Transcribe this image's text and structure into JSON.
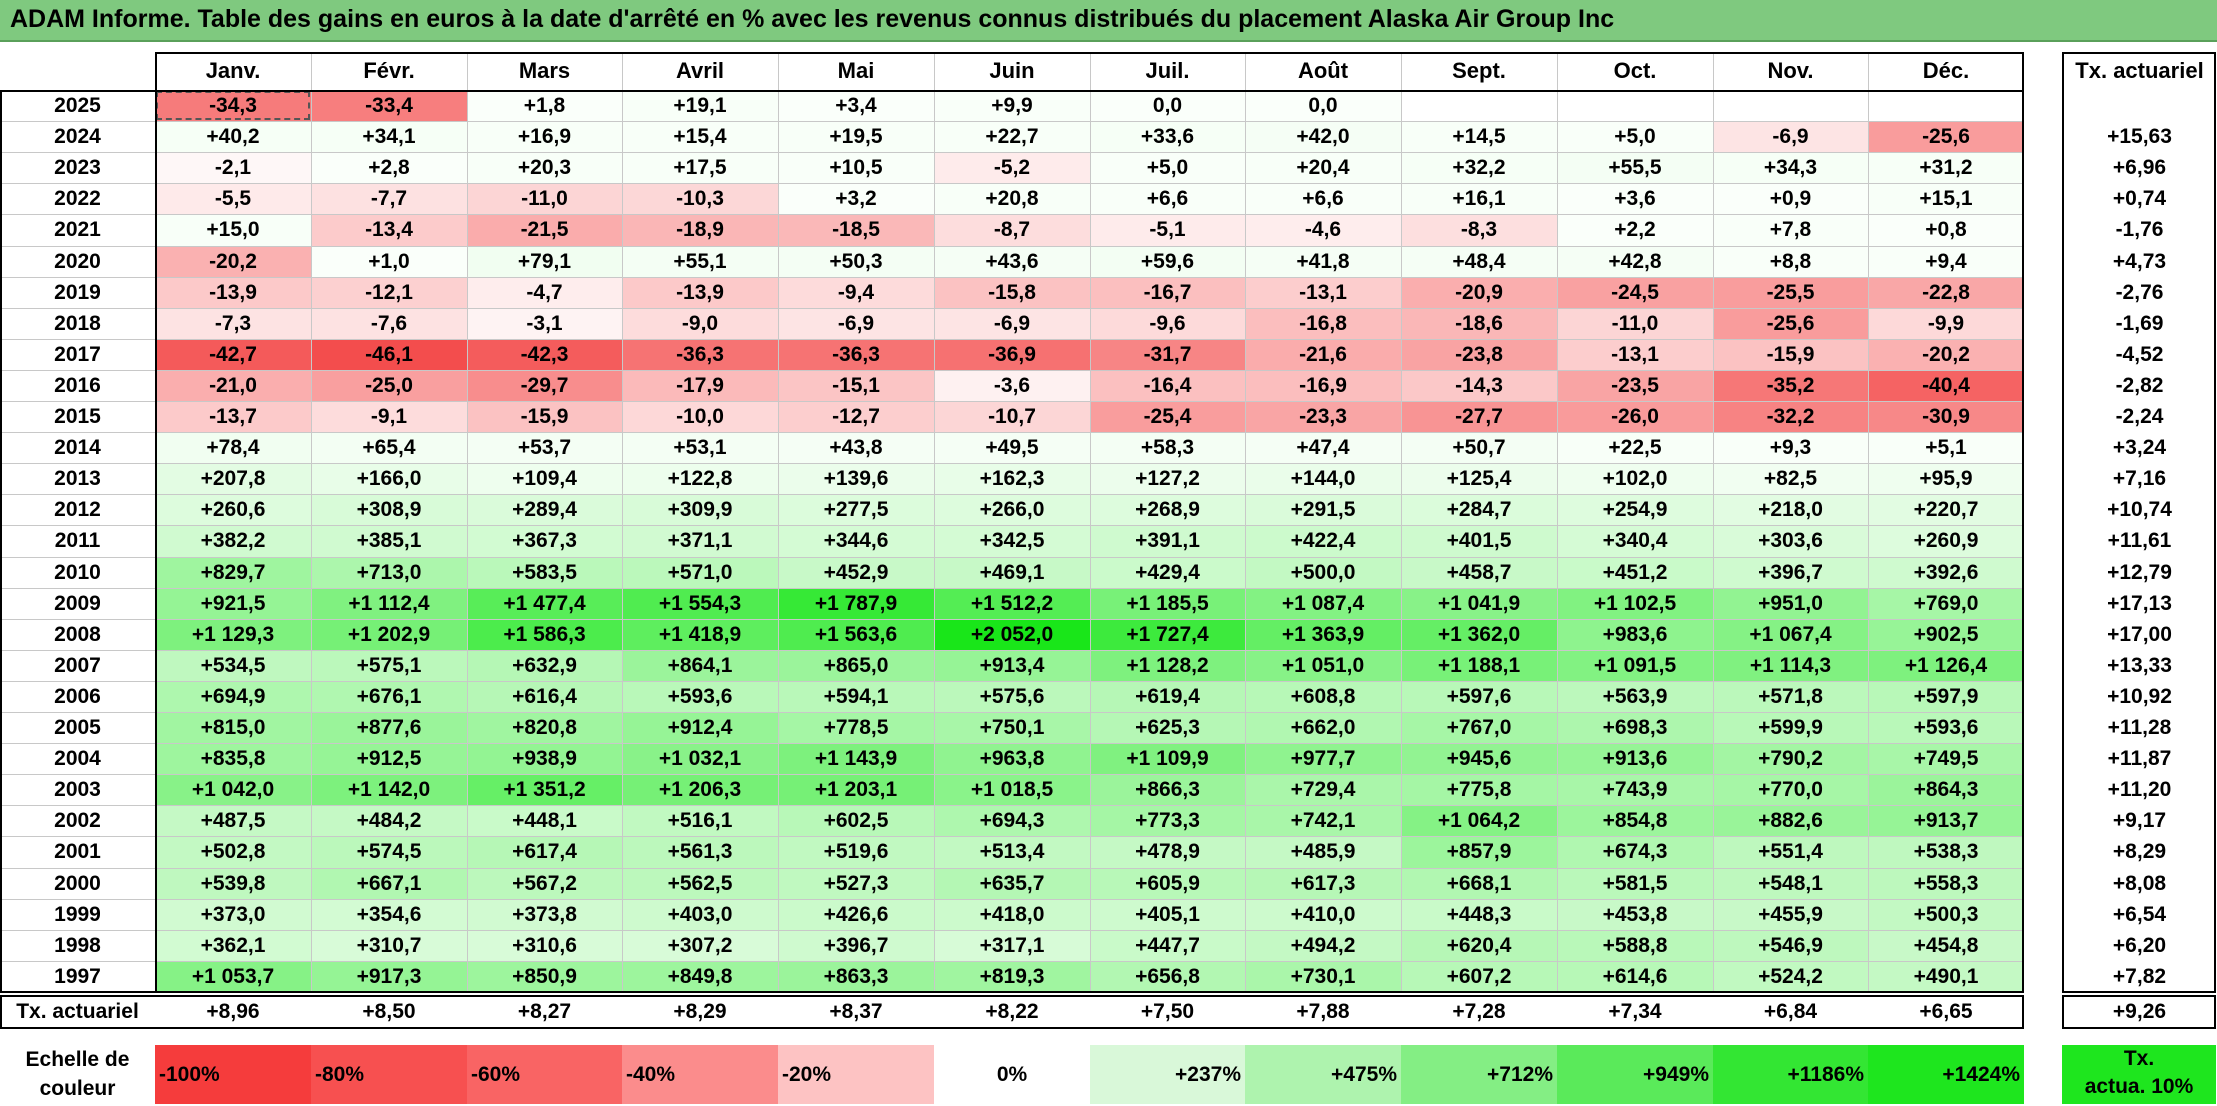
{
  "title": "ADAM Informe. Table des gains en euros à la date d'arrêté en % avec les revenus connus distribués du placement Alaska Air Group Inc",
  "months": [
    "Janv.",
    "Févr.",
    "Mars",
    "Avril",
    "Mai",
    "Juin",
    "Juil.",
    "Août",
    "Sept.",
    "Oct.",
    "Nov.",
    "Déc."
  ],
  "rate_header": "Tx. actuariel",
  "rows": [
    {
      "year": "2025",
      "values": [
        "-34,3",
        "-33,4",
        "+1,8",
        "+19,1",
        "+3,4",
        "+9,9",
        "0,0",
        "0,0",
        "",
        "",
        "",
        ""
      ],
      "rate": ""
    },
    {
      "year": "2024",
      "values": [
        "+40,2",
        "+34,1",
        "+16,9",
        "+15,4",
        "+19,5",
        "+22,7",
        "+33,6",
        "+42,0",
        "+14,5",
        "+5,0",
        "-6,9",
        "-25,6"
      ],
      "rate": "+15,63"
    },
    {
      "year": "2023",
      "values": [
        "-2,1",
        "+2,8",
        "+20,3",
        "+17,5",
        "+10,5",
        "-5,2",
        "+5,0",
        "+20,4",
        "+32,2",
        "+55,5",
        "+34,3",
        "+31,2"
      ],
      "rate": "+6,96"
    },
    {
      "year": "2022",
      "values": [
        "-5,5",
        "-7,7",
        "-11,0",
        "-10,3",
        "+3,2",
        "+20,8",
        "+6,6",
        "+6,6",
        "+16,1",
        "+3,6",
        "+0,9",
        "+15,1"
      ],
      "rate": "+0,74"
    },
    {
      "year": "2021",
      "values": [
        "+15,0",
        "-13,4",
        "-21,5",
        "-18,9",
        "-18,5",
        "-8,7",
        "-5,1",
        "-4,6",
        "-8,3",
        "+2,2",
        "+7,8",
        "+0,8"
      ],
      "rate": "-1,76"
    },
    {
      "year": "2020",
      "values": [
        "-20,2",
        "+1,0",
        "+79,1",
        "+55,1",
        "+50,3",
        "+43,6",
        "+59,6",
        "+41,8",
        "+48,4",
        "+42,8",
        "+8,8",
        "+9,4"
      ],
      "rate": "+4,73"
    },
    {
      "year": "2019",
      "values": [
        "-13,9",
        "-12,1",
        "-4,7",
        "-13,9",
        "-9,4",
        "-15,8",
        "-16,7",
        "-13,1",
        "-20,9",
        "-24,5",
        "-25,5",
        "-22,8"
      ],
      "rate": "-2,76"
    },
    {
      "year": "2018",
      "values": [
        "-7,3",
        "-7,6",
        "-3,1",
        "-9,0",
        "-6,9",
        "-6,9",
        "-9,6",
        "-16,8",
        "-18,6",
        "-11,0",
        "-25,6",
        "-9,9"
      ],
      "rate": "-1,69"
    },
    {
      "year": "2017",
      "values": [
        "-42,7",
        "-46,1",
        "-42,3",
        "-36,3",
        "-36,3",
        "-36,9",
        "-31,7",
        "-21,6",
        "-23,8",
        "-13,1",
        "-15,9",
        "-20,2"
      ],
      "rate": "-4,52"
    },
    {
      "year": "2016",
      "values": [
        "-21,0",
        "-25,0",
        "-29,7",
        "-17,9",
        "-15,1",
        "-3,6",
        "-16,4",
        "-16,9",
        "-14,3",
        "-23,5",
        "-35,2",
        "-40,4"
      ],
      "rate": "-2,82"
    },
    {
      "year": "2015",
      "values": [
        "-13,7",
        "-9,1",
        "-15,9",
        "-10,0",
        "-12,7",
        "-10,7",
        "-25,4",
        "-23,3",
        "-27,7",
        "-26,0",
        "-32,2",
        "-30,9"
      ],
      "rate": "-2,24"
    },
    {
      "year": "2014",
      "values": [
        "+78,4",
        "+65,4",
        "+53,7",
        "+53,1",
        "+43,8",
        "+49,5",
        "+58,3",
        "+47,4",
        "+50,7",
        "+22,5",
        "+9,3",
        "+5,1"
      ],
      "rate": "+3,24"
    },
    {
      "year": "2013",
      "values": [
        "+207,8",
        "+166,0",
        "+109,4",
        "+122,8",
        "+139,6",
        "+162,3",
        "+127,2",
        "+144,0",
        "+125,4",
        "+102,0",
        "+82,5",
        "+95,9"
      ],
      "rate": "+7,16"
    },
    {
      "year": "2012",
      "values": [
        "+260,6",
        "+308,9",
        "+289,4",
        "+309,9",
        "+277,5",
        "+266,0",
        "+268,9",
        "+291,5",
        "+284,7",
        "+254,9",
        "+218,0",
        "+220,7"
      ],
      "rate": "+10,74"
    },
    {
      "year": "2011",
      "values": [
        "+382,2",
        "+385,1",
        "+367,3",
        "+371,1",
        "+344,6",
        "+342,5",
        "+391,1",
        "+422,4",
        "+401,5",
        "+340,4",
        "+303,6",
        "+260,9"
      ],
      "rate": "+11,61"
    },
    {
      "year": "2010",
      "values": [
        "+829,7",
        "+713,0",
        "+583,5",
        "+571,0",
        "+452,9",
        "+469,1",
        "+429,4",
        "+500,0",
        "+458,7",
        "+451,2",
        "+396,7",
        "+392,6"
      ],
      "rate": "+12,79"
    },
    {
      "year": "2009",
      "values": [
        "+921,5",
        "+1 112,4",
        "+1 477,4",
        "+1 554,3",
        "+1 787,9",
        "+1 512,2",
        "+1 185,5",
        "+1 087,4",
        "+1 041,9",
        "+1 102,5",
        "+951,0",
        "+769,0"
      ],
      "rate": "+17,13"
    },
    {
      "year": "2008",
      "values": [
        "+1 129,3",
        "+1 202,9",
        "+1 586,3",
        "+1 418,9",
        "+1 563,6",
        "+2 052,0",
        "+1 727,4",
        "+1 363,9",
        "+1 362,0",
        "+983,6",
        "+1 067,4",
        "+902,5"
      ],
      "rate": "+17,00"
    },
    {
      "year": "2007",
      "values": [
        "+534,5",
        "+575,1",
        "+632,9",
        "+864,1",
        "+865,0",
        "+913,4",
        "+1 128,2",
        "+1 051,0",
        "+1 188,1",
        "+1 091,5",
        "+1 114,3",
        "+1 126,4"
      ],
      "rate": "+13,33"
    },
    {
      "year": "2006",
      "values": [
        "+694,9",
        "+676,1",
        "+616,4",
        "+593,6",
        "+594,1",
        "+575,6",
        "+619,4",
        "+608,8",
        "+597,6",
        "+563,9",
        "+571,8",
        "+597,9"
      ],
      "rate": "+10,92"
    },
    {
      "year": "2005",
      "values": [
        "+815,0",
        "+877,6",
        "+820,8",
        "+912,4",
        "+778,5",
        "+750,1",
        "+625,3",
        "+662,0",
        "+767,0",
        "+698,3",
        "+599,9",
        "+593,6"
      ],
      "rate": "+11,28"
    },
    {
      "year": "2004",
      "values": [
        "+835,8",
        "+912,5",
        "+938,9",
        "+1 032,1",
        "+1 143,9",
        "+963,8",
        "+1 109,9",
        "+977,7",
        "+945,6",
        "+913,6",
        "+790,2",
        "+749,5"
      ],
      "rate": "+11,87"
    },
    {
      "year": "2003",
      "values": [
        "+1 042,0",
        "+1 142,0",
        "+1 351,2",
        "+1 206,3",
        "+1 203,1",
        "+1 018,5",
        "+866,3",
        "+729,4",
        "+775,8",
        "+743,9",
        "+770,0",
        "+864,3"
      ],
      "rate": "+11,20"
    },
    {
      "year": "2002",
      "values": [
        "+487,5",
        "+484,2",
        "+448,1",
        "+516,1",
        "+602,5",
        "+694,3",
        "+773,3",
        "+742,1",
        "+1 064,2",
        "+854,8",
        "+882,6",
        "+913,7"
      ],
      "rate": "+9,17"
    },
    {
      "year": "2001",
      "values": [
        "+502,8",
        "+574,5",
        "+617,4",
        "+561,3",
        "+519,6",
        "+513,4",
        "+478,9",
        "+485,9",
        "+857,9",
        "+674,3",
        "+551,4",
        "+538,3"
      ],
      "rate": "+8,29"
    },
    {
      "year": "2000",
      "values": [
        "+539,8",
        "+667,1",
        "+567,2",
        "+562,5",
        "+527,3",
        "+635,7",
        "+605,9",
        "+617,3",
        "+668,1",
        "+581,5",
        "+548,1",
        "+558,3"
      ],
      "rate": "+8,08"
    },
    {
      "year": "1999",
      "values": [
        "+373,0",
        "+354,6",
        "+373,8",
        "+403,0",
        "+426,6",
        "+418,0",
        "+405,1",
        "+410,0",
        "+448,3",
        "+453,8",
        "+455,9",
        "+500,3"
      ],
      "rate": "+6,54"
    },
    {
      "year": "1998",
      "values": [
        "+362,1",
        "+310,7",
        "+310,6",
        "+307,2",
        "+396,7",
        "+317,1",
        "+447,7",
        "+494,2",
        "+620,4",
        "+588,8",
        "+546,9",
        "+454,8"
      ],
      "rate": "+6,20"
    },
    {
      "year": "1997",
      "values": [
        "+1 053,7",
        "+917,3",
        "+850,9",
        "+849,8",
        "+863,3",
        "+819,3",
        "+656,8",
        "+730,1",
        "+607,2",
        "+614,6",
        "+524,2",
        "+490,1"
      ],
      "rate": "+7,82"
    }
  ],
  "footer": {
    "label": "Tx. actuariel",
    "values": [
      "+8,96",
      "+8,50",
      "+8,27",
      "+8,29",
      "+8,37",
      "+8,22",
      "+7,50",
      "+7,88",
      "+7,28",
      "+7,34",
      "+6,84",
      "+6,65"
    ],
    "rate": "+9,26"
  },
  "legend": {
    "label_line1": "Echelle de",
    "label_line2": "couleur",
    "items": [
      {
        "text": "-100%",
        "color": "#f53c3c",
        "align": "left"
      },
      {
        "text": "-80%",
        "color": "#f75050",
        "align": "left"
      },
      {
        "text": "-60%",
        "color": "#f96464",
        "align": "left"
      },
      {
        "text": "-40%",
        "color": "#fb8c8c",
        "align": "left"
      },
      {
        "text": "-20%",
        "color": "#fdc3c3",
        "align": "left"
      },
      {
        "text": "0%",
        "color": "#ffffff",
        "align": "center"
      },
      {
        "text": "+237%",
        "color": "#d9f8d9",
        "align": "right"
      },
      {
        "text": "+475%",
        "color": "#aef3ae",
        "align": "right"
      },
      {
        "text": "+712%",
        "color": "#84ee84",
        "align": "right"
      },
      {
        "text": "+949%",
        "color": "#5aea5a",
        "align": "right"
      },
      {
        "text": "+1186%",
        "color": "#33e633",
        "align": "right"
      },
      {
        "text": "+1424%",
        "color": "#1ee61e",
        "align": "right"
      }
    ],
    "rate_line1": "Tx.",
    "rate_line2": "actua. 10%",
    "rate_color": "#1ee61e"
  },
  "colors": {
    "title_bg": "#7fc97f",
    "negative_max": "#f53c3c",
    "positive_max": "#1ee61e"
  }
}
